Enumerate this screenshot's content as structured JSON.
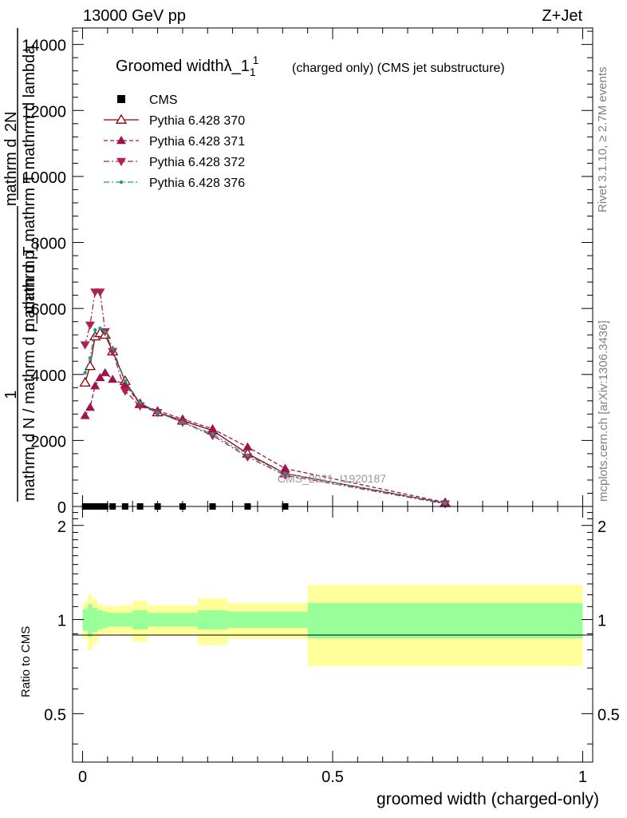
{
  "header": {
    "left": "13000 GeV pp",
    "right": "Z+Jet"
  },
  "side_labels": {
    "rivet": "Rivet 3.1.10, ≥ 2.7M events",
    "mcplots": "mcplots.cern.ch [arXiv:1306.3436]"
  },
  "chart_data": [
    {
      "type": "line",
      "panel": "main",
      "title": "Groomed widthλ_1",
      "title_superscript": "1",
      "subtitle": "(charged only) (CMS jet substructure)",
      "watermark": "CMS_2021_I1920187",
      "ylabel_numerator_top": "mathrm d",
      "ylabel_numerator_bottom": "2N",
      "ylabel_denominator": "mathrm d p_mathrm T mathrm d lambda",
      "ylabel_prefix_numerator": "1",
      "ylabel_prefix_denominator": "mathrm d N / mathrm d p_mathrm T",
      "xlim": [
        -0.02,
        1.02
      ],
      "ylim": [
        0,
        14500
      ],
      "yticks": [
        0,
        2000,
        4000,
        6000,
        8000,
        10000,
        12000,
        14000
      ],
      "ytick_labels": [
        "0",
        "2000",
        "4000",
        "6000",
        "8000",
        "10000",
        "12000",
        "14000"
      ],
      "legend_position": "top-left",
      "series": [
        {
          "name": "CMS",
          "style": "data",
          "color": "#000000",
          "x": [
            0.005,
            0.015,
            0.025,
            0.035,
            0.045,
            0.06,
            0.085,
            0.115,
            0.15,
            0.2,
            0.26,
            0.33,
            0.405
          ],
          "values": [
            0,
            0,
            0,
            0,
            0,
            0,
            0,
            0,
            0,
            0,
            0,
            0,
            0
          ]
        },
        {
          "name": "Pythia 6.428 370",
          "style": "solid",
          "marker": "triangle-up-open",
          "color": "#8b0000",
          "x": [
            0.005,
            0.015,
            0.025,
            0.035,
            0.045,
            0.06,
            0.085,
            0.115,
            0.15,
            0.2,
            0.26,
            0.33,
            0.405,
            0.725
          ],
          "values": [
            3750,
            4250,
            5150,
            5250,
            5200,
            4700,
            3800,
            3100,
            2850,
            2600,
            2300,
            1600,
            1000,
            100
          ]
        },
        {
          "name": "Pythia 6.428 371",
          "style": "dashed",
          "marker": "triangle-up",
          "color": "#a0124a",
          "x": [
            0.005,
            0.015,
            0.025,
            0.035,
            0.045,
            0.06,
            0.085,
            0.115,
            0.15,
            0.2,
            0.26,
            0.33,
            0.405,
            0.725
          ],
          "values": [
            2750,
            3000,
            3650,
            3900,
            4050,
            3850,
            3700,
            3100,
            2900,
            2650,
            2350,
            1800,
            1150,
            120
          ]
        },
        {
          "name": "Pythia 6.428 372",
          "style": "dashdot",
          "marker": "triangle-down",
          "color": "#b01e55",
          "x": [
            0.005,
            0.015,
            0.025,
            0.035,
            0.045,
            0.06,
            0.085,
            0.115,
            0.15,
            0.2,
            0.26,
            0.33,
            0.405,
            0.725
          ],
          "values": [
            4900,
            5500,
            6500,
            6500,
            5300,
            4700,
            3500,
            3050,
            2850,
            2550,
            2150,
            1500,
            950,
            80
          ]
        },
        {
          "name": "Pythia 6.428 376",
          "style": "dashdot",
          "marker": "dot",
          "color": "#1e9b84",
          "x": [
            0.005,
            0.015,
            0.025,
            0.035,
            0.045,
            0.06,
            0.085,
            0.115,
            0.15,
            0.2,
            0.26,
            0.33,
            0.405,
            0.725
          ],
          "values": [
            4050,
            4500,
            5350,
            5400,
            5300,
            4800,
            3800,
            3150,
            2850,
            2550,
            2200,
            1550,
            1000,
            100
          ]
        }
      ]
    },
    {
      "type": "area",
      "panel": "ratio",
      "ylabel": "Ratio to CMS",
      "xlabel": "groomed width (charged-only)",
      "xlim": [
        -0.02,
        1.02
      ],
      "ylim": [
        0.35,
        2.3
      ],
      "xticks": [
        0,
        0.5,
        1
      ],
      "xtick_labels": [
        "0",
        "0.5",
        "1"
      ],
      "yticks": [
        0.5,
        1,
        2
      ],
      "ytick_labels": [
        "0.5",
        "1",
        "2"
      ],
      "bins": [
        {
          "x0": 0.0,
          "x1": 0.01,
          "inner": [
            0.92,
            1.08
          ],
          "outer": [
            0.87,
            1.13
          ]
        },
        {
          "x0": 0.01,
          "x1": 0.02,
          "inner": [
            0.88,
            1.12
          ],
          "outer": [
            0.8,
            1.2
          ]
        },
        {
          "x0": 0.02,
          "x1": 0.03,
          "inner": [
            0.91,
            1.09
          ],
          "outer": [
            0.84,
            1.16
          ]
        },
        {
          "x0": 0.03,
          "x1": 0.04,
          "inner": [
            0.93,
            1.07
          ],
          "outer": [
            0.88,
            1.12
          ]
        },
        {
          "x0": 0.04,
          "x1": 0.05,
          "inner": [
            0.94,
            1.06
          ],
          "outer": [
            0.89,
            1.11
          ]
        },
        {
          "x0": 0.05,
          "x1": 0.07,
          "inner": [
            0.95,
            1.05
          ],
          "outer": [
            0.9,
            1.1
          ]
        },
        {
          "x0": 0.07,
          "x1": 0.1,
          "inner": [
            0.95,
            1.05
          ],
          "outer": [
            0.89,
            1.11
          ]
        },
        {
          "x0": 0.1,
          "x1": 0.13,
          "inner": [
            0.93,
            1.07
          ],
          "outer": [
            0.85,
            1.15
          ]
        },
        {
          "x0": 0.13,
          "x1": 0.17,
          "inner": [
            0.95,
            1.05
          ],
          "outer": [
            0.89,
            1.11
          ]
        },
        {
          "x0": 0.17,
          "x1": 0.23,
          "inner": [
            0.95,
            1.05
          ],
          "outer": [
            0.89,
            1.11
          ]
        },
        {
          "x0": 0.23,
          "x1": 0.29,
          "inner": [
            0.93,
            1.07
          ],
          "outer": [
            0.83,
            1.17
          ]
        },
        {
          "x0": 0.29,
          "x1": 0.37,
          "inner": [
            0.94,
            1.06
          ],
          "outer": [
            0.87,
            1.13
          ]
        },
        {
          "x0": 0.37,
          "x1": 0.45,
          "inner": [
            0.94,
            1.06
          ],
          "outer": [
            0.87,
            1.13
          ]
        },
        {
          "x0": 0.45,
          "x1": 1.0,
          "inner": [
            0.87,
            1.13
          ],
          "outer": [
            0.71,
            1.29
          ]
        }
      ],
      "colors": {
        "inner": "#99ff99",
        "outer": "#ffff99"
      }
    }
  ]
}
